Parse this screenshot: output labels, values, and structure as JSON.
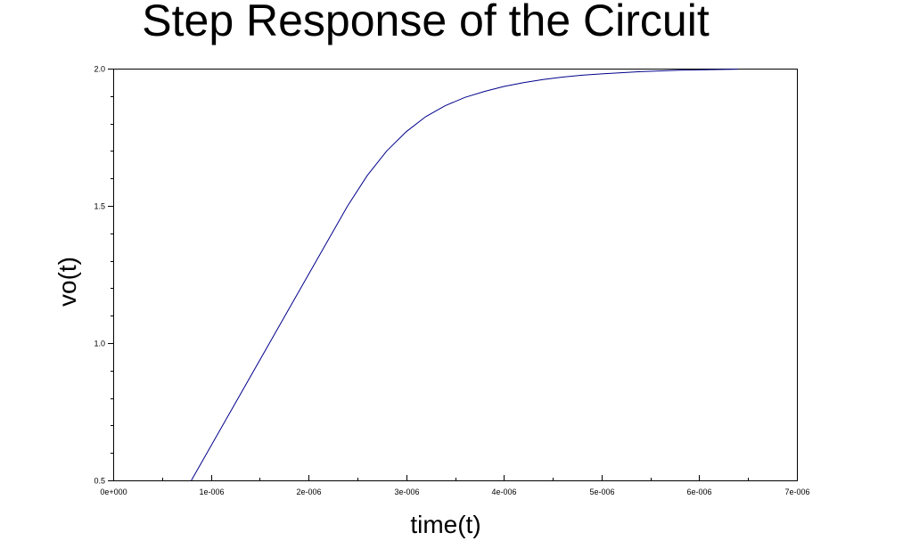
{
  "chart_data": {
    "type": "line",
    "title": "Step Response of the Circuit",
    "xlabel": "time(t)",
    "ylabel": "vo(t)",
    "xlim": [
      0,
      7e-06
    ],
    "ylim": [
      0.5,
      2.0
    ],
    "x_ticks": [
      0,
      1e-06,
      2e-06,
      3e-06,
      4e-06,
      5e-06,
      6e-06,
      7e-06
    ],
    "x_tick_labels": [
      "0e+000",
      "1e-006",
      "2e-006",
      "3e-006",
      "4e-006",
      "5e-006",
      "6e-006",
      "7e-006"
    ],
    "y_ticks": [
      0.5,
      1.0,
      1.5,
      2.0
    ],
    "y_tick_labels": [
      "0.5",
      "1.0",
      "1.5",
      "2.0"
    ],
    "grid": false,
    "legend": false,
    "series": [
      {
        "color": "#00008b",
        "x": [
          8e-07,
          1.2e-06,
          1.6e-06,
          2e-06,
          2.4e-06,
          2.6e-06,
          2.8e-06,
          3e-06,
          3.2e-06,
          3.4e-06,
          3.6e-06,
          3.8e-06,
          4e-06,
          4.2e-06,
          4.4e-06,
          4.6e-06,
          4.8e-06,
          5e-06,
          5.4e-06,
          5.8e-06,
          6.4e-06
        ],
        "y": [
          0.5,
          0.75,
          1.0,
          1.25,
          1.5,
          1.61,
          1.7,
          1.77,
          1.825,
          1.865,
          1.895,
          1.917,
          1.935,
          1.949,
          1.96,
          1.969,
          1.976,
          1.981,
          1.989,
          1.994,
          1.998
        ]
      }
    ]
  }
}
